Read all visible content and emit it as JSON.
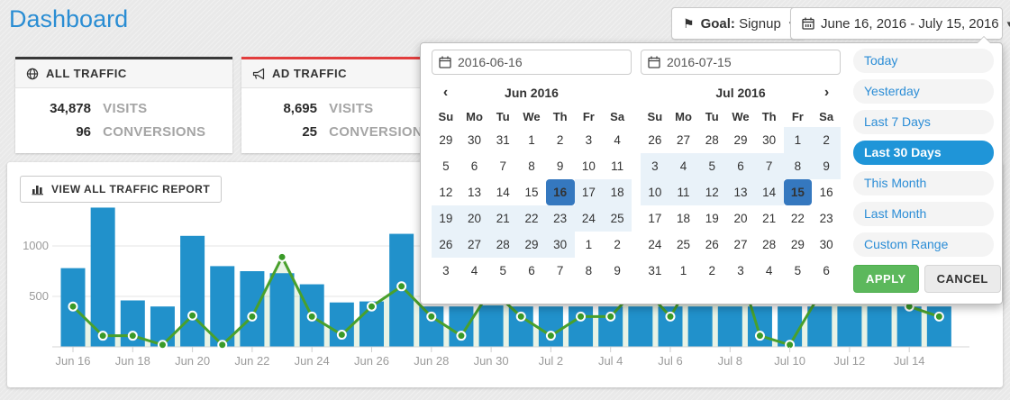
{
  "page": {
    "title": "Dashboard"
  },
  "header": {
    "goal_button": {
      "prefix": "Goal:",
      "value": "Signup",
      "caret": "▾"
    },
    "date_button": {
      "label": "June 16, 2016 - July 15, 2016",
      "caret": "▾"
    }
  },
  "cards": [
    {
      "title": "ALL TRAFFIC",
      "accent": "#383838",
      "stats": [
        {
          "value": "34,878",
          "label": "VISITS"
        },
        {
          "value": "96",
          "label": "CONVERSIONS"
        }
      ]
    },
    {
      "title": "AD TRAFFIC",
      "accent": "#e23d3d",
      "stats": [
        {
          "value": "8,695",
          "label": "VISITS"
        },
        {
          "value": "25",
          "label": "CONVERSIONS"
        }
      ]
    }
  ],
  "report_button": {
    "label": "VIEW ALL TRAFFIC REPORT"
  },
  "datepicker": {
    "inputs": [
      {
        "value": "2016-06-16"
      },
      {
        "value": "2016-07-15"
      }
    ],
    "weekdays": [
      "Su",
      "Mo",
      "Tu",
      "We",
      "Th",
      "Fr",
      "Sa"
    ],
    "months": [
      {
        "title": "Jun 2016",
        "nav_prev": "‹",
        "nav_next": "",
        "weeks": [
          [
            [
              "29",
              "off"
            ],
            [
              "30",
              "off"
            ],
            [
              "31",
              "off"
            ],
            [
              "1",
              ""
            ],
            [
              "2",
              ""
            ],
            [
              "3",
              ""
            ],
            [
              "4",
              ""
            ]
          ],
          [
            [
              "5",
              ""
            ],
            [
              "6",
              ""
            ],
            [
              "7",
              ""
            ],
            [
              "8",
              ""
            ],
            [
              "9",
              ""
            ],
            [
              "10",
              ""
            ],
            [
              "11",
              ""
            ]
          ],
          [
            [
              "12",
              ""
            ],
            [
              "13",
              ""
            ],
            [
              "14",
              ""
            ],
            [
              "15",
              ""
            ],
            [
              "16",
              "sel"
            ],
            [
              "17",
              "in"
            ],
            [
              "18",
              "in"
            ]
          ],
          [
            [
              "19",
              "in"
            ],
            [
              "20",
              "in"
            ],
            [
              "21",
              "in"
            ],
            [
              "22",
              "in"
            ],
            [
              "23",
              "in"
            ],
            [
              "24",
              "in"
            ],
            [
              "25",
              "in"
            ]
          ],
          [
            [
              "26",
              "in"
            ],
            [
              "27",
              "in"
            ],
            [
              "28",
              "in"
            ],
            [
              "29",
              "in"
            ],
            [
              "30",
              "in"
            ],
            [
              "1",
              "off"
            ],
            [
              "2",
              "off"
            ]
          ],
          [
            [
              "3",
              "off"
            ],
            [
              "4",
              "off"
            ],
            [
              "5",
              "off"
            ],
            [
              "6",
              "off"
            ],
            [
              "7",
              "off"
            ],
            [
              "8",
              "off"
            ],
            [
              "9",
              "off"
            ]
          ]
        ]
      },
      {
        "title": "Jul 2016",
        "nav_prev": "",
        "nav_next": "›",
        "weeks": [
          [
            [
              "26",
              "off"
            ],
            [
              "27",
              "off"
            ],
            [
              "28",
              "off"
            ],
            [
              "29",
              "off"
            ],
            [
              "30",
              "off"
            ],
            [
              "1",
              "in"
            ],
            [
              "2",
              "in"
            ]
          ],
          [
            [
              "3",
              "in"
            ],
            [
              "4",
              "in"
            ],
            [
              "5",
              "in"
            ],
            [
              "6",
              "in"
            ],
            [
              "7",
              "in"
            ],
            [
              "8",
              "in"
            ],
            [
              "9",
              "in"
            ]
          ],
          [
            [
              "10",
              "in"
            ],
            [
              "11",
              "in"
            ],
            [
              "12",
              "in"
            ],
            [
              "13",
              "in"
            ],
            [
              "14",
              "in"
            ],
            [
              "15",
              "sel"
            ],
            [
              "16",
              ""
            ]
          ],
          [
            [
              "17",
              ""
            ],
            [
              "18",
              ""
            ],
            [
              "19",
              ""
            ],
            [
              "20",
              ""
            ],
            [
              "21",
              ""
            ],
            [
              "22",
              ""
            ],
            [
              "23",
              ""
            ]
          ],
          [
            [
              "24",
              ""
            ],
            [
              "25",
              ""
            ],
            [
              "26",
              ""
            ],
            [
              "27",
              ""
            ],
            [
              "28",
              ""
            ],
            [
              "29",
              ""
            ],
            [
              "30",
              ""
            ]
          ],
          [
            [
              "31",
              ""
            ],
            [
              "1",
              "off"
            ],
            [
              "2",
              "off"
            ],
            [
              "3",
              "off"
            ],
            [
              "4",
              "off"
            ],
            [
              "5",
              "off"
            ],
            [
              "6",
              "off"
            ]
          ]
        ]
      }
    ],
    "ranges": [
      {
        "label": "Today",
        "active": false
      },
      {
        "label": "Yesterday",
        "active": false
      },
      {
        "label": "Last 7 Days",
        "active": false
      },
      {
        "label": "Last 30 Days",
        "active": true
      },
      {
        "label": "This Month",
        "active": false
      },
      {
        "label": "Last Month",
        "active": false
      },
      {
        "label": "Custom Range",
        "active": false
      }
    ],
    "apply_label": "APPLY",
    "cancel_label": "CANCEL"
  },
  "chart_data": {
    "type": "bar",
    "x": [
      "Jun 16",
      "Jun 17",
      "Jun 18",
      "Jun 19",
      "Jun 20",
      "Jun 21",
      "Jun 22",
      "Jun 23",
      "Jun 24",
      "Jun 25",
      "Jun 26",
      "Jun 27",
      "Jun 28",
      "Jun 29",
      "Jun 30",
      "Jul 1",
      "Jul 2",
      "Jul 3",
      "Jul 4",
      "Jul 5",
      "Jul 6",
      "Jul 7",
      "Jul 8",
      "Jul 9",
      "Jul 10",
      "Jul 11",
      "Jul 12",
      "Jul 13",
      "Jul 14",
      "Jul 15"
    ],
    "series": [
      {
        "name": "Visits",
        "type": "bar",
        "color": "#2191cb",
        "values": [
          780,
          1380,
          460,
          400,
          1100,
          800,
          750,
          730,
          620,
          440,
          450,
          1120,
          400,
          400,
          410,
          400,
          400,
          400,
          400,
          400,
          400,
          400,
          400,
          400,
          400,
          400,
          400,
          400,
          400,
          400
        ]
      },
      {
        "name": "Conversions",
        "type": "line",
        "color": "#49a02c",
        "area_color": "#49a02c",
        "area_opacity": 0.12,
        "values": [
          400,
          110,
          110,
          20,
          310,
          20,
          300,
          890,
          300,
          120,
          400,
          600,
          300,
          110,
          570,
          300,
          110,
          300,
          300,
          620,
          300,
          800,
          1080,
          110,
          20,
          520,
          700,
          600,
          400,
          300
        ]
      }
    ],
    "title": "",
    "xlabel": "",
    "ylabel": "",
    "y_ticks": [
      500,
      1000
    ],
    "ylim": [
      0,
      1400
    ],
    "x_label_every": 2,
    "grid": true
  }
}
